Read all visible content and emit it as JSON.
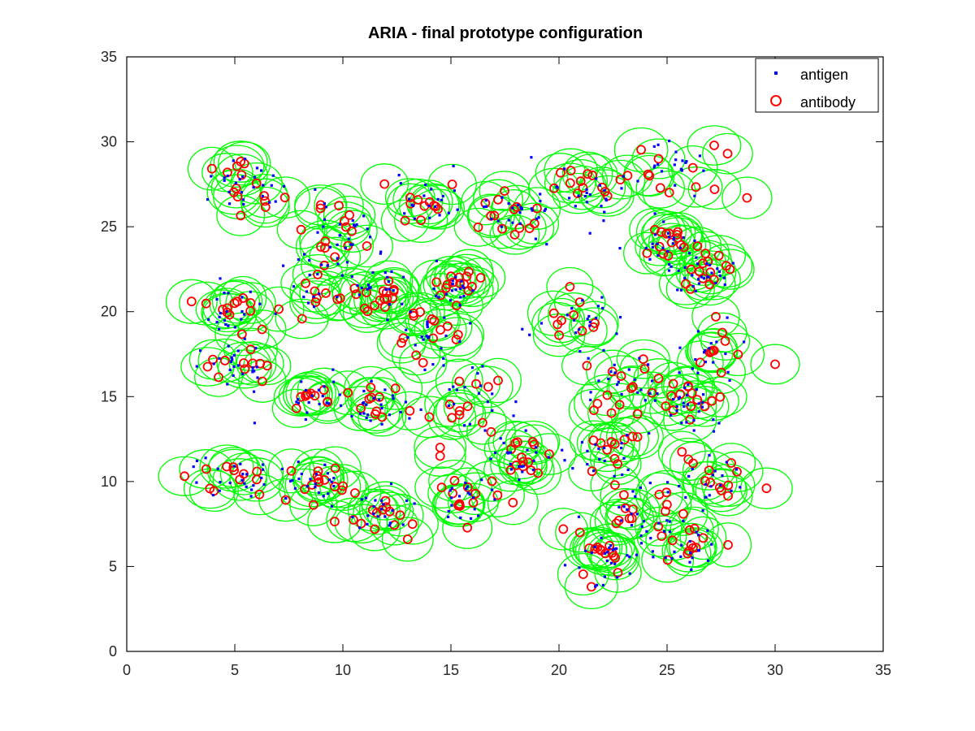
{
  "chart_data": {
    "type": "scatter",
    "title": "ARIA - final prototype configuration",
    "xlabel": "",
    "ylabel": "",
    "xlim": [
      0,
      35
    ],
    "ylim": [
      0,
      35
    ],
    "x_ticks": [
      "0",
      "5",
      "10",
      "15",
      "20",
      "25",
      "30",
      "35"
    ],
    "y_ticks": [
      "0",
      "5",
      "10",
      "15",
      "20",
      "25",
      "30",
      "35"
    ],
    "grid": false,
    "legend_position": "top-right",
    "legend": [
      "antigen",
      "antibody"
    ],
    "colors": {
      "antigen": "#0000ff",
      "antibody": "#ff0000",
      "radius_circle": "#00ff00"
    },
    "clusters": [
      {
        "x": 5.5,
        "y": 27.5,
        "spread": 1.2
      },
      {
        "x": 10.0,
        "y": 24.8,
        "spread": 1.1
      },
      {
        "x": 13.8,
        "y": 26.5,
        "spread": 1.1
      },
      {
        "x": 18.0,
        "y": 25.8,
        "spread": 1.1
      },
      {
        "x": 21.5,
        "y": 27.2,
        "spread": 1.3
      },
      {
        "x": 25.0,
        "y": 28.2,
        "spread": 1.3
      },
      {
        "x": 5.0,
        "y": 20.0,
        "spread": 1.1
      },
      {
        "x": 9.0,
        "y": 21.5,
        "spread": 1.2
      },
      {
        "x": 11.8,
        "y": 21.2,
        "spread": 0.9
      },
      {
        "x": 15.2,
        "y": 21.5,
        "spread": 0.8
      },
      {
        "x": 14.2,
        "y": 18.5,
        "spread": 1.2
      },
      {
        "x": 21.0,
        "y": 19.8,
        "spread": 1.0
      },
      {
        "x": 24.8,
        "y": 24.0,
        "spread": 0.9
      },
      {
        "x": 26.6,
        "y": 22.2,
        "spread": 1.0
      },
      {
        "x": 5.2,
        "y": 16.8,
        "spread": 1.0
      },
      {
        "x": 8.5,
        "y": 14.8,
        "spread": 1.0
      },
      {
        "x": 11.8,
        "y": 14.2,
        "spread": 1.0
      },
      {
        "x": 16.2,
        "y": 14.8,
        "spread": 1.2
      },
      {
        "x": 23.0,
        "y": 15.8,
        "spread": 1.2
      },
      {
        "x": 27.2,
        "y": 17.5,
        "spread": 1.2
      },
      {
        "x": 25.8,
        "y": 14.5,
        "spread": 1.0
      },
      {
        "x": 5.0,
        "y": 10.5,
        "spread": 1.1
      },
      {
        "x": 8.8,
        "y": 10.0,
        "spread": 0.9
      },
      {
        "x": 11.6,
        "y": 8.3,
        "spread": 0.9
      },
      {
        "x": 15.6,
        "y": 9.0,
        "spread": 1.1
      },
      {
        "x": 18.2,
        "y": 11.5,
        "spread": 0.8
      },
      {
        "x": 22.6,
        "y": 11.8,
        "spread": 1.2
      },
      {
        "x": 23.4,
        "y": 8.2,
        "spread": 1.3
      },
      {
        "x": 22.0,
        "y": 5.5,
        "spread": 1.0
      },
      {
        "x": 25.5,
        "y": 6.0,
        "spread": 1.2
      },
      {
        "x": 26.8,
        "y": 10.0,
        "spread": 1.0
      }
    ],
    "isolated_antibodies": [
      {
        "x": 3.0,
        "y": 20.6
      },
      {
        "x": 14.0,
        "y": 13.8
      },
      {
        "x": 14.5,
        "y": 12.0
      },
      {
        "x": 14.5,
        "y": 11.5
      },
      {
        "x": 20.2,
        "y": 7.2
      },
      {
        "x": 29.6,
        "y": 9.6
      },
      {
        "x": 30.0,
        "y": 16.9
      },
      {
        "x": 27.8,
        "y": 29.3
      },
      {
        "x": 28.7,
        "y": 26.7
      },
      {
        "x": 27.2,
        "y": 27.2
      },
      {
        "x": 13.0,
        "y": 6.6
      },
      {
        "x": 21.5,
        "y": 3.8
      }
    ]
  }
}
